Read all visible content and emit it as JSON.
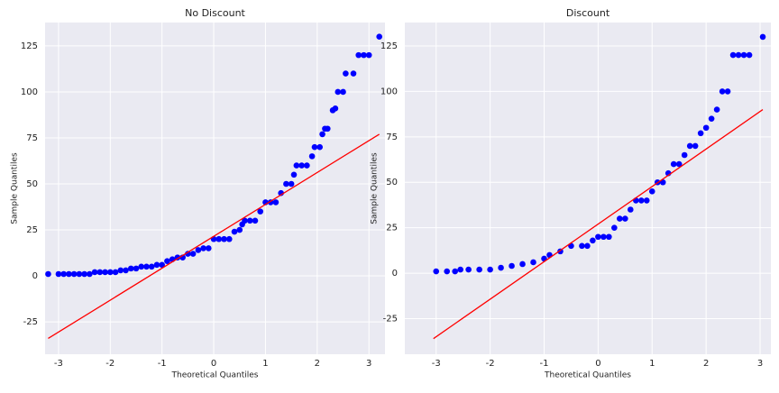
{
  "chart_data": [
    {
      "type": "scatter",
      "title": "No Discount",
      "xlabel": "Theoretical Quantiles",
      "ylabel": "Sample Quantiles",
      "xlim": [
        -3.26,
        3.31
      ],
      "ylim": [
        -42.6,
        137.7
      ],
      "xticks": [
        -3,
        -2,
        -1,
        0,
        1,
        2,
        3
      ],
      "yticks": [
        -25,
        0,
        25,
        50,
        75,
        100,
        125
      ],
      "grid": true,
      "color": "#0000ff",
      "x": [
        -3.2,
        -3.0,
        -2.9,
        -2.8,
        -2.7,
        -2.6,
        -2.5,
        -2.4,
        -2.3,
        -2.2,
        -2.1,
        -2.0,
        -1.9,
        -1.8,
        -1.7,
        -1.6,
        -1.5,
        -1.4,
        -1.3,
        -1.2,
        -1.1,
        -1.0,
        -0.9,
        -0.8,
        -0.7,
        -0.6,
        -0.5,
        -0.4,
        -0.3,
        -0.2,
        -0.1,
        0.0,
        0.1,
        0.2,
        0.3,
        0.4,
        0.5,
        0.55,
        0.6,
        0.7,
        0.8,
        0.9,
        1.0,
        1.1,
        1.2,
        1.3,
        1.4,
        1.5,
        1.55,
        1.6,
        1.7,
        1.8,
        1.9,
        1.95,
        2.05,
        2.1,
        2.15,
        2.2,
        2.3,
        2.35,
        2.4,
        2.5,
        2.55,
        2.7,
        2.8,
        2.9,
        3.0,
        3.2
      ],
      "values": [
        1,
        1,
        1,
        1,
        1,
        1,
        1,
        1,
        2,
        2,
        2,
        2,
        2,
        3,
        3,
        4,
        4,
        5,
        5,
        5,
        6,
        6,
        8,
        9,
        10,
        10,
        12,
        12,
        14,
        15,
        15,
        20,
        20,
        20,
        20,
        24,
        25,
        28,
        30,
        30,
        30,
        35,
        40,
        40,
        40,
        45,
        50,
        50,
        55,
        60,
        60,
        60,
        65,
        70,
        70,
        77,
        80,
        80,
        90,
        91,
        100,
        100,
        110,
        110,
        120,
        120,
        120,
        130
      ],
      "fit_line": {
        "color": "#ff0000",
        "x": [
          -3.2,
          3.2
        ],
        "values": [
          -34,
          77
        ]
      }
    },
    {
      "type": "scatter",
      "title": "Discount",
      "xlabel": "Theoretical Quantiles",
      "ylabel": "Sample Quantiles",
      "xlim": [
        -3.58,
        3.2
      ],
      "ylim": [
        -44.6,
        137.9
      ],
      "xticks": [
        -3,
        -2,
        -1,
        0,
        1,
        2,
        3
      ],
      "yticks": [
        -25,
        0,
        25,
        50,
        75,
        100,
        125
      ],
      "grid": true,
      "color": "#0000ff",
      "x": [
        -3.0,
        -2.8,
        -2.65,
        -2.55,
        -2.4,
        -2.2,
        -2.0,
        -1.8,
        -1.6,
        -1.4,
        -1.2,
        -1.0,
        -0.9,
        -0.7,
        -0.5,
        -0.3,
        -0.2,
        -0.1,
        0.0,
        0.1,
        0.2,
        0.3,
        0.4,
        0.5,
        0.6,
        0.7,
        0.8,
        0.9,
        1.0,
        1.1,
        1.2,
        1.3,
        1.4,
        1.5,
        1.6,
        1.7,
        1.8,
        1.9,
        2.0,
        2.1,
        2.2,
        2.3,
        2.4,
        2.5,
        2.6,
        2.7,
        2.8,
        3.05
      ],
      "values": [
        1,
        1,
        1,
        2,
        2,
        2,
        2,
        3,
        4,
        5,
        6,
        8,
        10,
        12,
        15,
        15,
        15,
        18,
        20,
        20,
        20,
        25,
        30,
        30,
        35,
        40,
        40,
        40,
        45,
        50,
        50,
        55,
        60,
        60,
        65,
        70,
        70,
        77,
        80,
        85,
        90,
        100,
        100,
        120,
        120,
        120,
        120,
        130
      ],
      "fit_line": {
        "color": "#ff0000",
        "x": [
          -3.05,
          3.05
        ],
        "values": [
          -36,
          90
        ]
      }
    }
  ]
}
